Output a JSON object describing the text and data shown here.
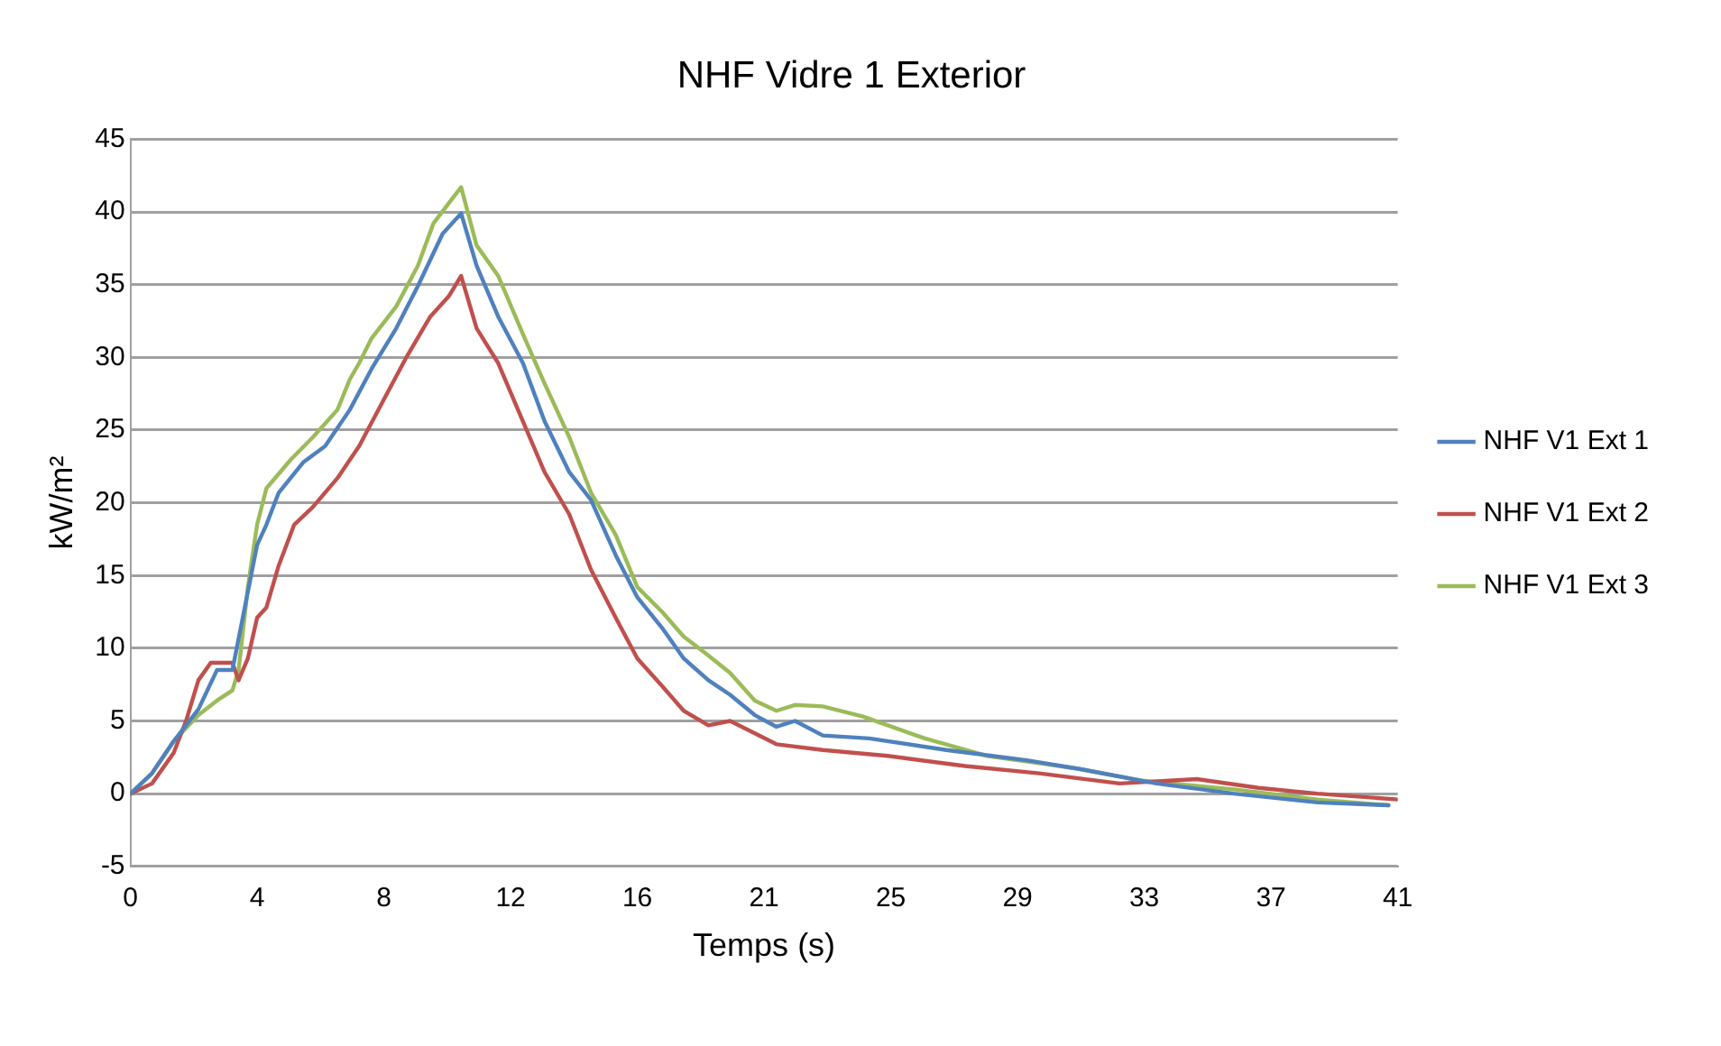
{
  "chart_data": {
    "type": "line",
    "title": "NHF Vidre 1 Exterior",
    "xlabel": "Temps (s)",
    "ylabel": "kW/m²",
    "xlim": [
      0,
      41
    ],
    "xticks": [
      0,
      {
        "value": 4.1,
        "label": "4"
      },
      {
        "value": 8.2,
        "label": "8"
      },
      {
        "value": 12.3,
        "label": "12"
      },
      {
        "value": 16.4,
        "label": "16"
      },
      {
        "value": 20.5,
        "label": "21"
      },
      {
        "value": 24.6,
        "label": "25"
      },
      {
        "value": 28.7,
        "label": "29"
      },
      {
        "value": 32.8,
        "label": "33"
      },
      {
        "value": 36.9,
        "label": "37"
      },
      41
    ],
    "ylim": [
      -5,
      45
    ],
    "yticks": [
      -5,
      0,
      5,
      10,
      15,
      20,
      25,
      30,
      35,
      40,
      45
    ],
    "grid": "y",
    "legend": "right",
    "marker": "none",
    "line_style": "solid",
    "series": [
      {
        "name": "NHF V1 Ext 1",
        "color": "#4f81bd",
        "x": [
          0,
          0.7,
          1.4,
          2.2,
          2.8,
          3.3,
          3.7,
          4.1,
          4.4,
          4.8,
          5.6,
          6.3,
          7.1,
          7.8,
          8.6,
          9.3,
          10.1,
          10.7,
          11.2,
          11.9,
          12.7,
          13.4,
          14.2,
          14.9,
          15.7,
          16.4,
          17.2,
          17.9,
          18.7,
          19.4,
          20.2,
          20.9,
          21.5,
          22.4,
          23.9,
          26.4,
          29,
          30.7,
          33.2,
          35.7,
          38.4,
          40.7
        ],
        "values": [
          0,
          1.4,
          3.6,
          5.8,
          8.5,
          8.5,
          12.8,
          17.1,
          18.5,
          20.7,
          22.8,
          23.9,
          26.4,
          29.2,
          32,
          34.9,
          38.5,
          39.9,
          36.3,
          32.8,
          29.6,
          25.6,
          22.1,
          20.2,
          16.4,
          13.5,
          11.4,
          9.3,
          7.8,
          6.8,
          5.4,
          4.6,
          5,
          4,
          3.8,
          3,
          2.3,
          1.7,
          0.7,
          0,
          -0.6,
          -0.8
        ]
      },
      {
        "name": "NHF V1 Ext 2",
        "color": "#c0504d",
        "x": [
          0,
          0.7,
          1.4,
          1.8,
          2.2,
          2.6,
          3.3,
          3.5,
          3.8,
          4.1,
          4.4,
          4.8,
          5.3,
          5.9,
          6.7,
          7.4,
          8.2,
          8.9,
          9.7,
          10.3,
          10.7,
          11.2,
          11.9,
          12.7,
          13.4,
          14.2,
          14.9,
          15.7,
          16.4,
          17.2,
          17.9,
          18.7,
          19.4,
          20.9,
          22.4,
          24.5,
          27,
          29.4,
          32,
          34.5,
          36.5,
          38.4,
          41
        ],
        "values": [
          0,
          0.7,
          2.8,
          5,
          7.8,
          9,
          9,
          7.8,
          9.3,
          12.1,
          12.8,
          15.7,
          18.5,
          19.7,
          21.7,
          23.9,
          27.1,
          29.9,
          32.8,
          34.2,
          35.6,
          32,
          29.6,
          25.6,
          22.1,
          19.2,
          15.4,
          12.1,
          9.3,
          7.4,
          5.7,
          4.7,
          5,
          3.4,
          3,
          2.6,
          1.9,
          1.4,
          0.7,
          1,
          0.4,
          0,
          -0.4
        ]
      },
      {
        "name": "NHF V1 Ext 3",
        "color": "#9bbb59",
        "x": [
          0,
          0.7,
          1.4,
          2.2,
          2.8,
          3.3,
          3.5,
          3.8,
          4.1,
          4.4,
          5.2,
          5.9,
          6.7,
          7.1,
          7.4,
          7.8,
          8.6,
          9.3,
          9.8,
          10.3,
          10.7,
          11.2,
          11.9,
          12.7,
          13.4,
          14.2,
          14.9,
          15.7,
          16.4,
          17.2,
          17.9,
          18.7,
          19.4,
          20.2,
          20.9,
          21.5,
          22.4,
          23.7,
          25.7,
          27.7,
          29.4,
          30.7,
          32.7,
          35.7,
          38.4,
          40.7
        ],
        "values": [
          0,
          1.4,
          3.6,
          5.4,
          6.4,
          7.1,
          8.5,
          14.2,
          18.5,
          21,
          23,
          24.5,
          26.4,
          28.5,
          29.6,
          31.3,
          33.5,
          36.3,
          39.2,
          40.6,
          41.7,
          37.7,
          35.6,
          31.6,
          28.2,
          24.5,
          20.7,
          17.8,
          14.2,
          12.5,
          10.8,
          9.5,
          8.3,
          6.4,
          5.7,
          6.1,
          6,
          5.3,
          3.8,
          2.6,
          2.1,
          1.7,
          0.9,
          0.3,
          -0.4,
          -0.8
        ]
      }
    ]
  }
}
